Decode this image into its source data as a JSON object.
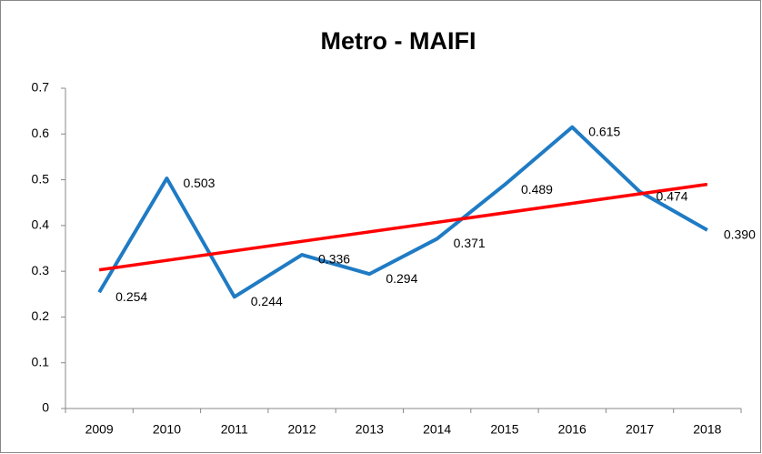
{
  "chart_data": {
    "type": "line",
    "title": "Metro - MAIFI",
    "categories": [
      "2009",
      "2010",
      "2011",
      "2012",
      "2013",
      "2014",
      "2015",
      "2016",
      "2017",
      "2018"
    ],
    "series": [
      {
        "color": "#1f7bc4",
        "values": [
          0.254,
          0.503,
          0.244,
          0.336,
          0.294,
          0.371,
          0.489,
          0.615,
          0.474,
          0.39
        ],
        "value_labels": [
          "0.254",
          "0.503",
          "0.244",
          "0.336",
          "0.294",
          "0.371",
          "0.489",
          "0.615",
          "0.474",
          "0.390"
        ]
      }
    ],
    "trendline": {
      "color": "#ff0000",
      "values": [
        0.303,
        0.49
      ]
    },
    "ylim": [
      0,
      0.7
    ],
    "yticks": [
      0,
      0.1,
      0.2,
      0.3,
      0.4,
      0.5,
      0.6,
      0.7
    ],
    "grid": false
  }
}
